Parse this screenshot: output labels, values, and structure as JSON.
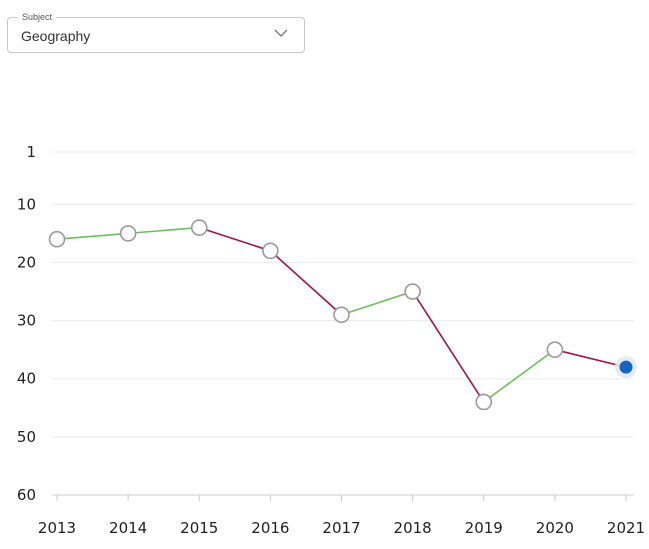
{
  "filter": {
    "legend": "Subject",
    "selected": "Geography",
    "icon": "chevron-down-icon"
  },
  "chart_data": {
    "type": "line",
    "title": "",
    "xlabel": "",
    "ylabel": "",
    "x": [
      "2013",
      "2014",
      "2015",
      "2016",
      "2017",
      "2018",
      "2019",
      "2020",
      "2021"
    ],
    "series": [
      {
        "values": [
          16,
          15,
          14,
          18,
          29,
          25,
          44,
          35,
          38
        ]
      }
    ],
    "y_axis": {
      "inverted": true,
      "range": [
        1,
        60
      ],
      "ticks": [
        "1",
        "10",
        "20",
        "30",
        "40",
        "50",
        "60"
      ]
    },
    "segment_colors": {
      "improved": "#6cbf5c",
      "declined": "#a3153f"
    },
    "marker_color": "#9a9a9a",
    "highlight": {
      "x": "2021",
      "color": "#1565c0"
    },
    "grid": true,
    "legend": "none"
  }
}
